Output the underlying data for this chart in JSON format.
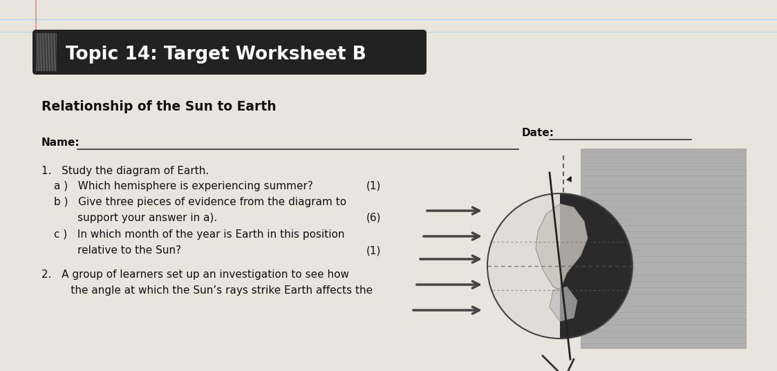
{
  "bg_color": "#e8e4de",
  "paper_color": "#f2efeb",
  "title_text": "Topic 14: Target Worksheet B",
  "title_bg": "#222222",
  "title_fg": "#ffffff",
  "subtitle": "Relationship of the Sun to Earth",
  "date_label": "Date:",
  "name_label": "Name:",
  "q1_intro": "1.   Study the diagram of Earth.",
  "q1a_text": "a )   Which hemisphere is experiencing summer?",
  "q1a_mark": "(1)",
  "q1b_line1": "b )   Give three pieces of evidence from the diagram to",
  "q1b_line2": "       support your answer in a).",
  "q1b_mark": "(6)",
  "q1c_line1": "c )   In which month of the year is Earth in this position",
  "q1c_line2": "       relative to the Sun?",
  "q1c_mark": "(1)",
  "q2_line1": "2.   A group of learners set up an investigation to see how",
  "q2_line2": "     the angle at which the Sun’s rays strike Earth affects the",
  "text_color": "#111111",
  "line_color": "#333333",
  "ruled_line_color": "#aac8e8",
  "red_margin_color": "#cc7777"
}
